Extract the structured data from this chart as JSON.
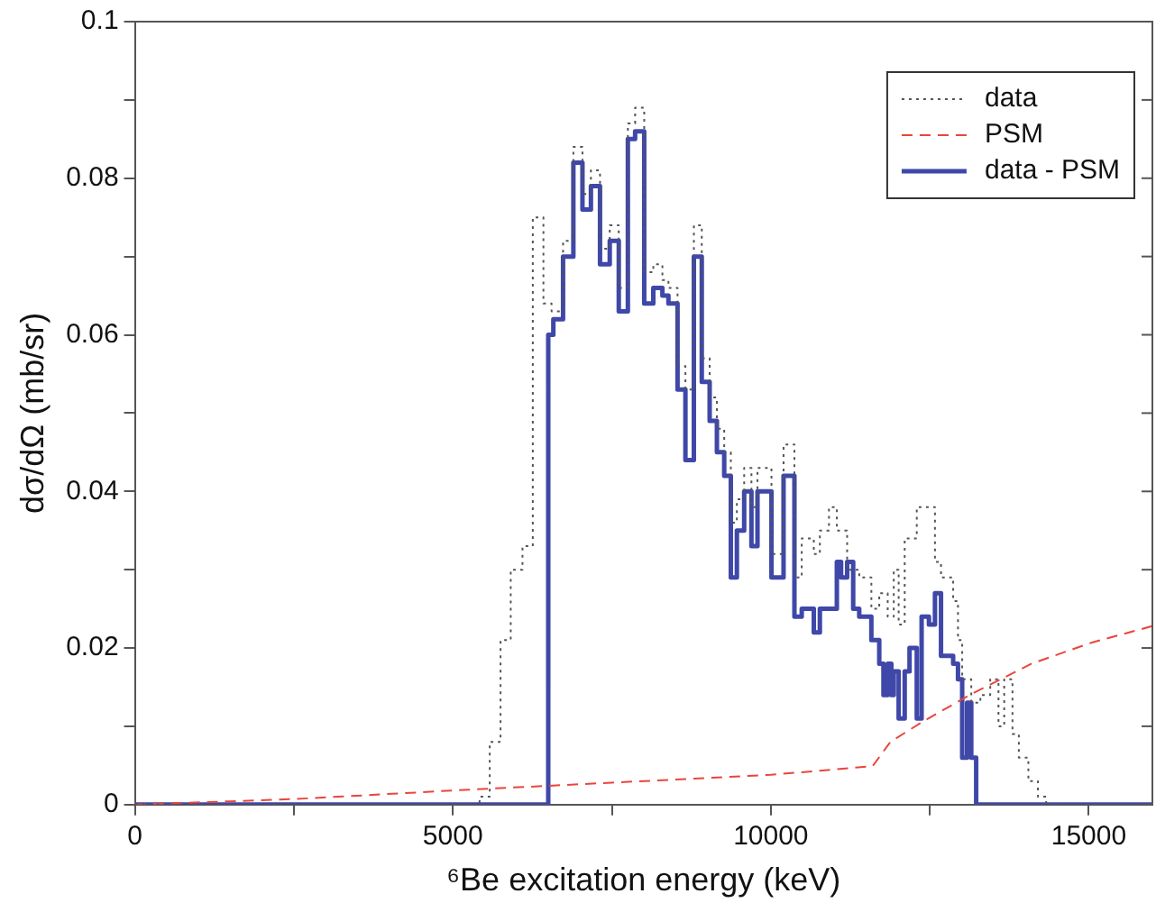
{
  "chart_data": {
    "type": "step",
    "xlabel": "⁶Be excitation energy (keV)",
    "ylabel": "dσ/dΩ (mb/sr)",
    "xlim": [
      0,
      16000
    ],
    "xticks": [
      0,
      {
        "value": 2500,
        "label": null
      },
      5000,
      {
        "value": 7500,
        "label": null
      },
      10000,
      {
        "value": 12500,
        "label": null
      },
      15000
    ],
    "ylim": [
      0,
      0.1
    ],
    "yticks": [
      0,
      {
        "value": 0.01,
        "label": null
      },
      0.02,
      {
        "value": 0.03,
        "label": null
      },
      0.04,
      {
        "value": 0.05,
        "label": null
      },
      0.06,
      {
        "value": 0.07,
        "label": null
      },
      0.08,
      {
        "value": 0.09,
        "label": null
      },
      0.1
    ],
    "grid": false,
    "legend": "top right",
    "marker": "none",
    "series": [
      {
        "name": "data",
        "type": "step",
        "color": "#555555",
        "line_style": "dotted",
        "x": [
          0,
          5420,
          5580,
          5750,
          5910,
          6095,
          6257,
          6424,
          6552,
          6733,
          6895,
          7038,
          7171,
          7314,
          7467,
          7609,
          7752,
          7866,
          8009,
          8152,
          8295,
          8390,
          8533,
          8657,
          8790,
          8914,
          9038,
          9152,
          9267,
          9371,
          9466,
          9581,
          9695,
          9790,
          10010,
          10200,
          10371,
          10486,
          10676,
          10771,
          10914,
          11038,
          11200,
          11390,
          11581,
          11705,
          11838,
          11933,
          12010,
          12105,
          12295,
          12486,
          12581,
          12676,
          12867,
          12943,
          13009,
          13152,
          13295,
          13450,
          13580,
          13670,
          13800,
          13900,
          14050,
          14200,
          14330,
          16000
        ],
        "values": [
          0,
          0.001,
          0.008,
          0.021,
          0.03,
          0.033,
          0.075,
          0.064,
          0.063,
          0.072,
          0.084,
          0.078,
          0.081,
          0.071,
          0.074,
          0.066,
          0.087,
          0.089,
          0.068,
          0.069,
          0.067,
          0.066,
          0.056,
          0.053,
          0.074,
          0.057,
          0.052,
          0.048,
          0.045,
          0.036,
          0.039,
          0.043,
          0.038,
          0.043,
          0.032,
          0.046,
          0.029,
          0.034,
          0.032,
          0.035,
          0.038,
          0.035,
          0.03,
          0.029,
          0.025,
          0.027,
          0.024,
          0.03,
          0.023,
          0.034,
          0.038,
          0.038,
          0.031,
          0.029,
          0.026,
          0.021,
          0.016,
          0.013,
          0.014,
          0.016,
          0.01,
          0.016,
          0.009,
          0.006,
          0.003,
          0.001,
          0,
          0
        ]
      },
      {
        "name": "PSM",
        "type": "line",
        "color": "#e8453c",
        "line_style": "dashed",
        "x": [
          0,
          2500,
          5000,
          7500,
          10000,
          11600,
          11880,
          12390,
          13150,
          14100,
          15050,
          16000
        ],
        "values": [
          0,
          0.0007,
          0.0018,
          0.0028,
          0.0038,
          0.0049,
          0.008,
          0.0106,
          0.0141,
          0.018,
          0.0207,
          0.0228
        ]
      },
      {
        "name": "data - PSM",
        "type": "step",
        "color": "#3f48a8",
        "line_style": "solid",
        "x": [
          0,
          6500,
          6580,
          6733,
          6895,
          7038,
          7171,
          7314,
          7467,
          7609,
          7752,
          7866,
          8009,
          8152,
          8295,
          8390,
          8533,
          8657,
          8790,
          8914,
          9038,
          9152,
          9267,
          9371,
          9466,
          9581,
          9695,
          9790,
          10010,
          10200,
          10371,
          10486,
          10676,
          10771,
          10914,
          11038,
          11105,
          11200,
          11295,
          11390,
          11581,
          11705,
          11771,
          11838,
          11895,
          11933,
          12010,
          12105,
          12181,
          12295,
          12371,
          12486,
          12581,
          12676,
          12867,
          12943,
          13009,
          13086,
          13152,
          13229,
          16000
        ],
        "values": [
          0,
          0.06,
          0.062,
          0.07,
          0.082,
          0.076,
          0.079,
          0.069,
          0.072,
          0.063,
          0.085,
          0.086,
          0.064,
          0.066,
          0.065,
          0.064,
          0.053,
          0.044,
          0.07,
          0.054,
          0.049,
          0.045,
          0.042,
          0.029,
          0.035,
          0.04,
          0.033,
          0.04,
          0.029,
          0.042,
          0.024,
          0.025,
          0.022,
          0.025,
          0.025,
          0.031,
          0.029,
          0.031,
          0.025,
          0.024,
          0.021,
          0.018,
          0.014,
          0.018,
          0.014,
          0.017,
          0.011,
          0.017,
          0.02,
          0.011,
          0.024,
          0.023,
          0.027,
          0.019,
          0.018,
          0.016,
          0.006,
          0.013,
          0.006,
          0,
          0
        ]
      }
    ]
  }
}
